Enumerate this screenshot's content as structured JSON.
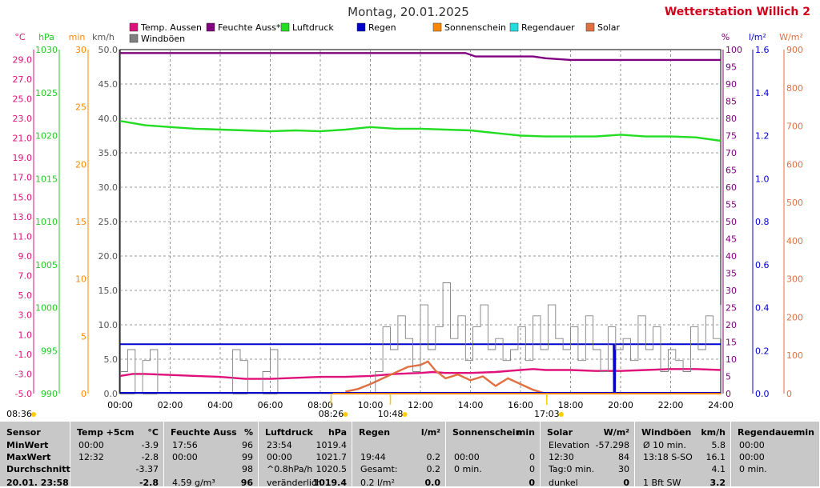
{
  "title": "Montag, 20.01.2025",
  "station": "Wetterstation Willich",
  "station_suffix": "2",
  "legend": [
    {
      "label": "Temp. Aussen",
      "color": "#e0107a"
    },
    {
      "label": "Feuchte Auss*",
      "color": "#800080"
    },
    {
      "label": "Luftdruck",
      "color": "#22dd22"
    },
    {
      "label": "Regen",
      "color": "#0000cc"
    },
    {
      "label": "Sonnenschein",
      "color": "#ff8800"
    },
    {
      "label": "Regendauer",
      "color": "#22dddd"
    },
    {
      "label": "Solar",
      "color": "#e07040"
    },
    {
      "label": "Windböen",
      "color": "#808080"
    }
  ],
  "axis_units": {
    "temp": "°C",
    "hpa": "hPa",
    "min": "min",
    "kmh": "km/h",
    "pct": "%",
    "lm2": "l/m²",
    "wm2": "W/m²"
  },
  "chart_data": {
    "type": "line",
    "x_ticks": [
      "00:00",
      "02:00",
      "04:00",
      "06:00",
      "08:00",
      "10:00",
      "12:00",
      "14:00",
      "16:00",
      "18:00",
      "20:00",
      "22:00",
      "24:00"
    ],
    "x_range_hours": [
      0,
      24
    ],
    "y_axes": {
      "temp": {
        "unit": "°C",
        "range": [
          -5,
          30
        ],
        "ticks": [
          "29.0",
          "27.0",
          "25.0",
          "23.0",
          "21.0",
          "19.0",
          "17.0",
          "15.0",
          "13.0",
          "11.0",
          "9.0",
          "7.0",
          "5.0",
          "3.0",
          "1.0",
          "-1.0",
          "-3.0",
          "-5.0"
        ]
      },
      "hpa": {
        "unit": "hPa",
        "range": [
          990,
          1030
        ],
        "ticks": [
          "1030",
          "1025",
          "1020",
          "1015",
          "1010",
          "1005",
          "1000",
          "995",
          "990"
        ]
      },
      "min": {
        "unit": "min",
        "range": [
          0,
          30
        ],
        "ticks": [
          "30",
          "25",
          "20",
          "15",
          "10",
          "5",
          "0"
        ]
      },
      "kmh": {
        "unit": "km/h",
        "range": [
          0,
          50
        ],
        "ticks": [
          "50.0",
          "45.0",
          "40.0",
          "35.0",
          "30.0",
          "25.0",
          "20.0",
          "15.0",
          "10.0",
          "5.0",
          "0.0"
        ]
      },
      "pct": {
        "unit": "%",
        "range": [
          0,
          100
        ],
        "ticks": [
          "100",
          "95",
          "90",
          "85",
          "80",
          "75",
          "70",
          "65",
          "60",
          "55",
          "50",
          "45",
          "40",
          "35",
          "30",
          "25",
          "20",
          "15",
          "10",
          "5",
          "0"
        ]
      },
      "lm2": {
        "unit": "l/m²",
        "range": [
          0,
          1.6
        ],
        "ticks": [
          "1.6",
          "1.4",
          "1.2",
          "1.0",
          "0.8",
          "0.6",
          "0.4",
          "0.2",
          "0.0"
        ]
      },
      "wm2": {
        "unit": "W/m²",
        "range": [
          0,
          900
        ],
        "ticks": [
          "900",
          "800",
          "700",
          "600",
          "500",
          "400",
          "300",
          "200",
          "100",
          "0"
        ]
      }
    },
    "series": [
      {
        "name": "Temp. Aussen",
        "axis": "temp",
        "color": "#e0107a",
        "x": [
          0,
          0.5,
          1,
          2,
          3,
          4,
          5,
          6,
          7,
          8,
          9,
          10,
          11,
          12,
          12.5,
          13,
          14,
          15,
          16,
          16.5,
          17,
          18,
          19,
          20,
          21,
          22,
          23,
          24
        ],
        "y": [
          -3.2,
          -3.0,
          -3.0,
          -3.1,
          -3.2,
          -3.3,
          -3.5,
          -3.5,
          -3.4,
          -3.3,
          -3.3,
          -3.2,
          -3.0,
          -2.9,
          -2.8,
          -2.9,
          -2.9,
          -2.8,
          -2.6,
          -2.5,
          -2.6,
          -2.6,
          -2.7,
          -2.7,
          -2.6,
          -2.5,
          -2.5,
          -2.6
        ]
      },
      {
        "name": "Feuchte Auss*",
        "axis": "pct",
        "color": "#800080",
        "x": [
          0,
          13.8,
          14.2,
          16.5,
          17,
          18,
          19,
          20,
          22,
          24
        ],
        "y": [
          99,
          99,
          98,
          98,
          97.5,
          97,
          97,
          97,
          97,
          97
        ]
      },
      {
        "name": "Luftdruck",
        "axis": "hpa",
        "color": "#22dd22",
        "x": [
          0,
          1,
          2,
          3,
          4,
          5,
          6,
          7,
          8,
          9,
          10,
          11,
          12,
          13,
          14,
          15,
          16,
          17,
          18,
          19,
          20,
          21,
          22,
          23,
          24
        ],
        "y": [
          1021.7,
          1021.2,
          1021.0,
          1020.8,
          1020.7,
          1020.6,
          1020.5,
          1020.6,
          1020.5,
          1020.7,
          1021.0,
          1020.8,
          1020.8,
          1020.7,
          1020.6,
          1020.3,
          1020.0,
          1019.9,
          1019.9,
          1019.9,
          1020.1,
          1019.9,
          1019.9,
          1019.8,
          1019.4
        ]
      },
      {
        "name": "Regen",
        "axis": "lm2",
        "color": "#0000cc",
        "x": [
          0,
          19.72,
          19.73,
          19.78,
          19.79,
          24
        ],
        "y": [
          0.23,
          0.23,
          0.0,
          0.0,
          0.23,
          0.23
        ]
      },
      {
        "name": "Solar",
        "axis": "wm2",
        "color": "#e07040",
        "x": [
          9.0,
          9.5,
          10.0,
          10.5,
          11.0,
          11.5,
          12.0,
          12.3,
          12.6,
          13.0,
          13.5,
          14.0,
          14.5,
          15.0,
          15.5,
          16.0,
          16.5,
          17.0
        ],
        "y": [
          5,
          12,
          25,
          40,
          55,
          70,
          75,
          84,
          60,
          40,
          50,
          35,
          45,
          20,
          40,
          25,
          10,
          0
        ]
      },
      {
        "name": "Windböen",
        "axis": "kmh",
        "color": "#808080",
        "x": [
          0,
          0.3,
          0.6,
          0.9,
          1.2,
          1.5,
          1.8,
          2.1,
          2.4,
          2.7,
          3.0,
          3.3,
          3.6,
          3.9,
          4.2,
          4.5,
          4.8,
          5.1,
          5.4,
          5.7,
          6.0,
          6.3,
          6.6,
          6.9,
          7.2,
          7.5,
          7.8,
          8.1,
          8.4,
          8.7,
          9.0,
          9.3,
          9.6,
          9.9,
          10.2,
          10.5,
          10.8,
          11.1,
          11.4,
          11.7,
          12.0,
          12.3,
          12.6,
          12.9,
          13.2,
          13.5,
          13.8,
          14.1,
          14.4,
          14.7,
          15.0,
          15.3,
          15.6,
          15.9,
          16.2,
          16.5,
          16.8,
          17.1,
          17.4,
          17.7,
          18.0,
          18.3,
          18.6,
          18.9,
          19.2,
          19.5,
          19.8,
          20.1,
          20.4,
          20.7,
          21.0,
          21.3,
          21.6,
          21.9,
          22.2,
          22.5,
          22.8,
          23.1,
          23.4,
          23.7,
          24.0
        ],
        "y": [
          3.2,
          6.4,
          0,
          4.8,
          6.4,
          0,
          0,
          0,
          0,
          0,
          0,
          0,
          0,
          0,
          0,
          6.4,
          4.8,
          0,
          0,
          3.2,
          6.4,
          0,
          0,
          0,
          0,
          0,
          0,
          0,
          0,
          0,
          0,
          0,
          0,
          0,
          3.2,
          9.7,
          6.4,
          11.3,
          8.0,
          3.2,
          12.9,
          6.4,
          9.7,
          16.1,
          8.0,
          11.3,
          4.8,
          9.7,
          12.9,
          6.4,
          8.0,
          4.8,
          6.4,
          9.7,
          4.8,
          11.3,
          6.4,
          12.9,
          8.0,
          6.4,
          9.7,
          4.8,
          11.3,
          6.4,
          3.2,
          9.7,
          6.4,
          8.0,
          4.8,
          11.3,
          6.4,
          9.7,
          3.2,
          6.4,
          4.8,
          3.2,
          9.7,
          6.4,
          11.3,
          8.0,
          12.9
        ]
      }
    ],
    "markers": [
      {
        "label": "08:36",
        "pos": "bottom-left"
      },
      {
        "label": "08:26"
      },
      {
        "label": "10:48"
      },
      {
        "label": "17:03"
      }
    ]
  },
  "table": [
    {
      "header": [
        "Sensor",
        ""
      ],
      "rows": [
        [
          "MinWert",
          ""
        ],
        [
          "MaxWert",
          ""
        ],
        [
          "Durchschnitt",
          ""
        ],
        [
          "20.01. 23:58",
          ""
        ]
      ]
    },
    {
      "header": [
        "Temp +5cm",
        "°C"
      ],
      "rows": [
        [
          "00:00",
          "-3.9"
        ],
        [
          "12:32",
          "-2.8"
        ],
        [
          "",
          "-3.37"
        ],
        [
          "",
          "-2.8"
        ]
      ]
    },
    {
      "header": [
        "Feuchte Auss",
        "%"
      ],
      "rows": [
        [
          "17:56",
          "96"
        ],
        [
          "00:00",
          "99"
        ],
        [
          "",
          "98"
        ],
        [
          "4.59 g/m³",
          "96"
        ]
      ]
    },
    {
      "header": [
        "Luftdruck",
        "hPa"
      ],
      "rows": [
        [
          "23:54",
          "1019.4"
        ],
        [
          "00:00",
          "1021.7"
        ],
        [
          "^0.8hPa/h",
          "1020.5"
        ],
        [
          "veränderlich",
          "1019.4"
        ]
      ]
    },
    {
      "header": [
        "Regen",
        "l/m²"
      ],
      "rows": [
        [
          "",
          ""
        ],
        [
          "19:44",
          "0.2"
        ],
        [
          "Gesamt:",
          "0.2"
        ],
        [
          "0.2 l/m²",
          "0.0"
        ]
      ]
    },
    {
      "header": [
        "Sonnenschein",
        "min"
      ],
      "rows": [
        [
          "",
          ""
        ],
        [
          "00:00",
          "0"
        ],
        [
          "0 min.",
          "0"
        ],
        [
          "",
          "0"
        ]
      ]
    },
    {
      "header": [
        "Solar",
        "W/m²"
      ],
      "rows": [
        [
          "Elevation",
          "-57.298"
        ],
        [
          "12:30",
          "84"
        ],
        [
          "Tag:0 min.",
          "30"
        ],
        [
          "dunkel",
          "0"
        ]
      ]
    },
    {
      "header": [
        "Windböen",
        "km/h"
      ],
      "rows": [
        [
          "Ø 10 min.",
          "5.8"
        ],
        [
          "13:18   S-SO",
          "16.1"
        ],
        [
          "",
          "4.1"
        ],
        [
          "1 Bft SW",
          "3.2"
        ]
      ]
    },
    {
      "header": [
        "Regendauer",
        "min"
      ],
      "rows": [
        [
          "00:00",
          ""
        ],
        [
          "00:00",
          ""
        ],
        [
          "0 min.",
          ""
        ],
        [
          "",
          ""
        ]
      ]
    }
  ]
}
